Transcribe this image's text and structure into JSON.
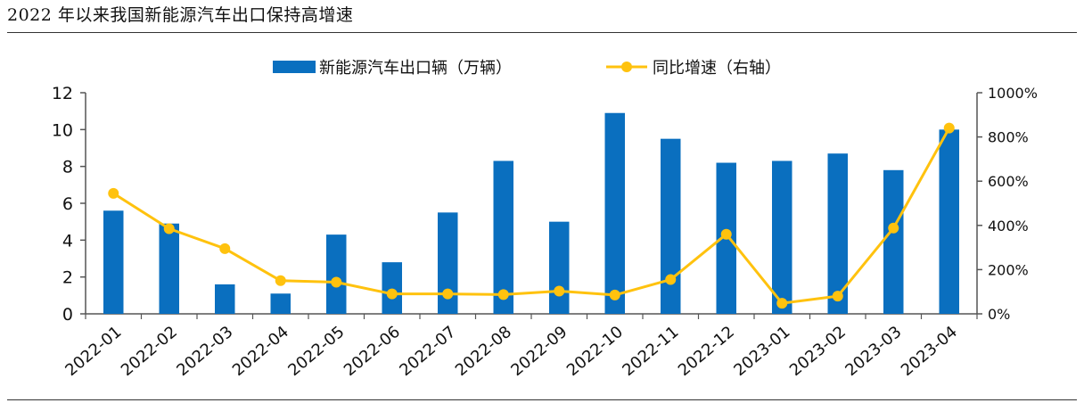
{
  "figure": {
    "title": "2022 年以来我国新能源汽车出口保持高增速"
  },
  "colors": {
    "bar": "#0a6fbf",
    "line": "#ffc20e",
    "axis": "#555555"
  },
  "chart_data": {
    "type": "bar",
    "categories": [
      "2022-01",
      "2022-02",
      "2022-03",
      "2022-04",
      "2022-05",
      "2022-06",
      "2022-07",
      "2022-08",
      "2022-09",
      "2022-10",
      "2022-11",
      "2022-12",
      "2023-01",
      "2023-02",
      "2023-03",
      "2023-04"
    ],
    "series": [
      {
        "name": "新能源汽车出口辆（万辆）",
        "type": "bar",
        "axis": "left",
        "values": [
          5.6,
          4.9,
          1.6,
          1.1,
          4.3,
          2.8,
          5.5,
          8.3,
          5.0,
          10.9,
          9.5,
          8.2,
          8.3,
          8.7,
          7.8,
          10.0
        ]
      },
      {
        "name": "同比增速（右轴）",
        "type": "line",
        "axis": "right",
        "values": [
          545,
          385,
          295,
          150,
          143,
          90,
          90,
          87,
          103,
          85,
          155,
          360,
          48,
          80,
          388,
          840
        ]
      }
    ],
    "y_left": {
      "lim": [
        0,
        12
      ],
      "ticks": [
        "0",
        "2",
        "4",
        "6",
        "8",
        "10",
        "12"
      ]
    },
    "y_right": {
      "lim": [
        0,
        1000
      ],
      "ticks": [
        "0%",
        "200%",
        "400%",
        "600%",
        "800%",
        "1000%"
      ]
    },
    "legend_position": "top-center",
    "grid": false
  }
}
